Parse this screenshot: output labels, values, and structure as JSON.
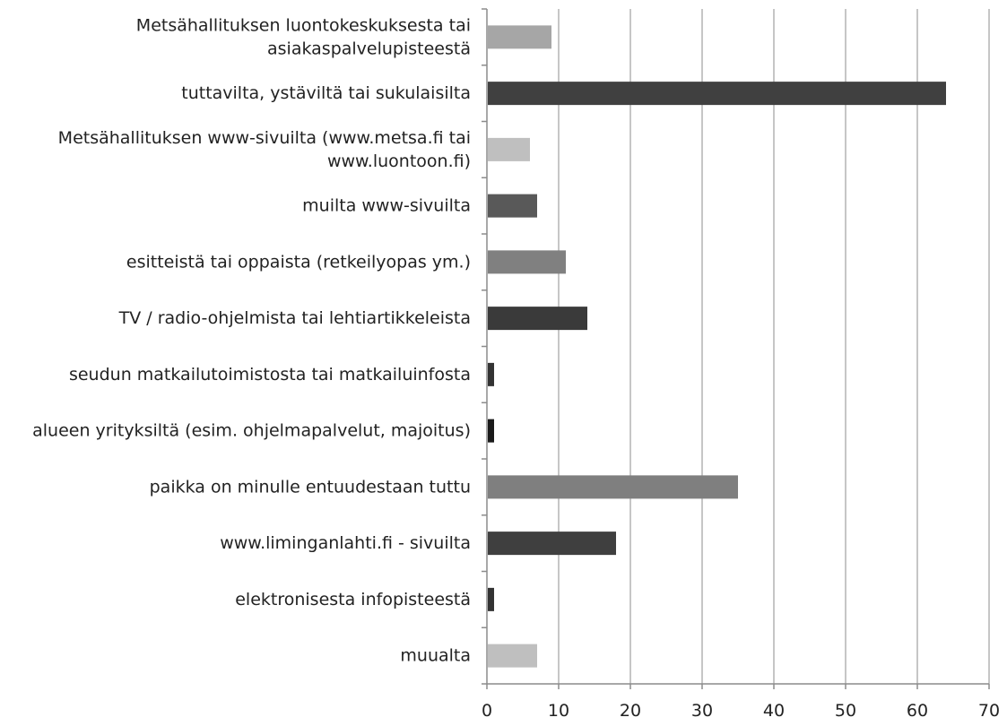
{
  "chart_data": {
    "type": "bar",
    "orientation": "horizontal",
    "categories": [
      "Metsähallituksen luontokeskuksesta tai asiakaspalvelupisteestä",
      "tuttavilta, ystäviltä tai sukulaisilta",
      "Metsähallituksen www-sivuilta (www.metsa.fi tai www.luontoon.fi)",
      "muilta www-sivuilta",
      "esitteistä tai oppaista (retkeilyopas ym.)",
      "TV / radio-ohjelmista tai lehtiartikkeleista",
      "seudun matkailutoimistosta tai matkailuinfosta",
      "alueen yrityksiltä (esim. ohjelmapalvelut, majoitus)",
      "paikka on minulle entuudestaan tuttu",
      "www.liminganlahti.fi - sivuilta",
      "elektronisesta infopisteestä",
      "muualta"
    ],
    "category_lines": [
      [
        "Metsähallituksen luontokeskuksesta tai",
        "asiakaspalvelupisteestä"
      ],
      [
        "tuttavilta, ystäviltä tai sukulaisilta"
      ],
      [
        "Metsähallituksen www-sivuilta (www.metsa.fi tai",
        "www.luontoon.fi)"
      ],
      [
        "muilta www-sivuilta"
      ],
      [
        "esitteistä tai oppaista (retkeilyopas ym.)"
      ],
      [
        "TV / radio-ohjelmista tai lehtiartikkeleista"
      ],
      [
        "seudun matkailutoimistosta tai matkailuinfosta"
      ],
      [
        "alueen yrityksiltä (esim. ohjelmapalvelut, majoitus)"
      ],
      [
        "paikka on minulle entuudestaan tuttu"
      ],
      [
        "www.liminganlahti.fi - sivuilta"
      ],
      [
        "elektronisesta infopisteestä"
      ],
      [
        "muualta"
      ]
    ],
    "values": [
      9,
      64,
      6,
      7,
      11,
      14,
      1,
      1,
      35,
      18,
      1,
      7
    ],
    "bar_colors": [
      "#a6a6a6",
      "#404040",
      "#bfbfbf",
      "#595959",
      "#808080",
      "#3a3a3a",
      "#333333",
      "#1a1a1a",
      "#7f7f7f",
      "#3f3f3f",
      "#333333",
      "#bfbfbf"
    ],
    "xlim": [
      0,
      70
    ],
    "x_ticks": [
      0,
      10,
      20,
      30,
      40,
      50,
      60,
      70
    ],
    "x_tick_labels": [
      "0",
      "10",
      "20",
      "30",
      "40",
      "50",
      "60",
      "70"
    ],
    "grid": "vertical",
    "grid_color": "#8c8c8c",
    "axis_color": "#8c8c8c",
    "title": "",
    "xlabel": "",
    "ylabel": ""
  }
}
